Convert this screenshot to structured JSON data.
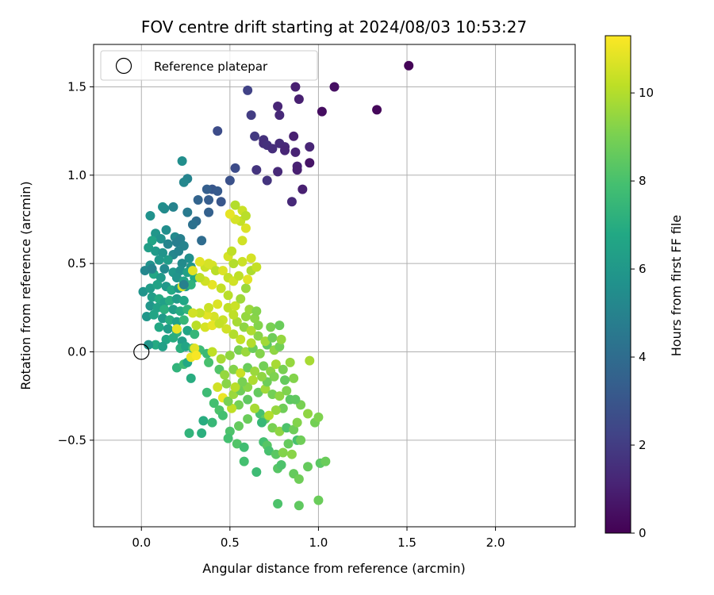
{
  "chart_data": {
    "type": "scatter",
    "title": "FOV centre drift starting at 2024/08/03 10:53:27",
    "xlabel": "Angular distance from reference (arcmin)",
    "ylabel": "Rotation from reference (arcmin)",
    "xlim": [
      -0.27,
      2.45
    ],
    "ylim": [
      -0.99,
      1.74
    ],
    "xticks": [
      "0.0",
      "0.5",
      "1.0",
      "1.5",
      "2.0"
    ],
    "xtick_values": [
      0,
      0.5,
      1.0,
      1.5,
      2.0
    ],
    "yticks": [
      "−0.5",
      "0.0",
      "0.5",
      "1.0",
      "1.5"
    ],
    "ytick_values": [
      -0.5,
      0,
      0.5,
      1.0,
      1.5
    ],
    "grid": true,
    "legend": {
      "position": "top-left",
      "entries": [
        "Reference platepar"
      ]
    },
    "reference_point": {
      "x": 0,
      "y": 0
    },
    "colorbar": {
      "label": "Hours from first FF file",
      "ticks": [
        "0",
        "2",
        "4",
        "6",
        "8",
        "10"
      ],
      "tick_values": [
        0,
        2,
        4,
        6,
        8,
        10
      ],
      "range": [
        0,
        11.3
      ],
      "colormap": "viridis"
    },
    "points": [
      [
        1.51,
        1.62,
        0.1
      ],
      [
        1.33,
        1.37,
        0.2
      ],
      [
        1.09,
        1.5,
        0.5
      ],
      [
        0.87,
        1.5,
        1.0
      ],
      [
        0.89,
        1.43,
        1.0
      ],
      [
        1.02,
        1.36,
        0.4
      ],
      [
        0.77,
        1.39,
        1.2
      ],
      [
        0.78,
        1.34,
        1.3
      ],
      [
        0.6,
        1.48,
        2.2
      ],
      [
        0.62,
        1.34,
        2.0
      ],
      [
        0.43,
        1.25,
        2.6
      ],
      [
        0.64,
        1.22,
        1.9
      ],
      [
        0.86,
        1.22,
        1.0
      ],
      [
        0.69,
        1.2,
        1.6
      ],
      [
        0.69,
        1.18,
        1.5
      ],
      [
        0.71,
        1.17,
        1.6
      ],
      [
        0.78,
        1.18,
        1.4
      ],
      [
        0.81,
        1.16,
        1.3
      ],
      [
        0.74,
        1.15,
        1.5
      ],
      [
        0.81,
        1.14,
        1.2
      ],
      [
        0.87,
        1.13,
        1.1
      ],
      [
        0.95,
        1.16,
        1.2
      ],
      [
        0.95,
        1.07,
        0.6
      ],
      [
        0.88,
        1.05,
        1.1
      ],
      [
        0.88,
        1.03,
        1.0
      ],
      [
        0.77,
        1.02,
        1.3
      ],
      [
        0.65,
        1.03,
        1.7
      ],
      [
        0.53,
        1.04,
        2.6
      ],
      [
        0.71,
        0.97,
        1.7
      ],
      [
        0.91,
        0.92,
        1.0
      ],
      [
        0.85,
        0.85,
        1.3
      ],
      [
        0.5,
        0.97,
        2.8
      ],
      [
        0.4,
        0.92,
        3.0
      ],
      [
        0.43,
        0.91,
        3.2
      ],
      [
        0.37,
        0.92,
        3.4
      ],
      [
        0.38,
        0.86,
        3.3
      ],
      [
        0.32,
        0.86,
        3.6
      ],
      [
        0.45,
        0.85,
        3.0
      ],
      [
        0.23,
        1.08,
        5.5
      ],
      [
        0.26,
        0.98,
        5.0
      ],
      [
        0.24,
        0.96,
        5.2
      ],
      [
        0.12,
        0.82,
        5.6
      ],
      [
        0.13,
        0.81,
        5.4
      ],
      [
        0.18,
        0.82,
        5.0
      ],
      [
        0.26,
        0.79,
        4.6
      ],
      [
        0.05,
        0.77,
        5.7
      ],
      [
        0.38,
        0.79,
        3.5
      ],
      [
        0.31,
        0.74,
        4.0
      ],
      [
        0.29,
        0.72,
        4.2
      ],
      [
        0.08,
        0.67,
        5.9
      ],
      [
        0.14,
        0.69,
        5.5
      ],
      [
        0.34,
        0.63,
        4.0
      ],
      [
        0.19,
        0.65,
        5.3
      ],
      [
        0.22,
        0.64,
        4.9
      ],
      [
        0.11,
        0.64,
        5.7
      ],
      [
        0.06,
        0.63,
        6.6
      ],
      [
        0.15,
        0.61,
        5.1
      ],
      [
        0.2,
        0.62,
        4.8
      ],
      [
        0.24,
        0.6,
        5.0
      ],
      [
        0.04,
        0.59,
        6.3
      ],
      [
        0.08,
        0.57,
        6.1
      ],
      [
        0.12,
        0.56,
        5.8
      ],
      [
        0.18,
        0.55,
        5.2
      ],
      [
        0.21,
        0.57,
        5.0
      ],
      [
        0.27,
        0.53,
        5.6
      ],
      [
        0.1,
        0.52,
        6.0
      ],
      [
        0.15,
        0.52,
        6.2
      ],
      [
        0.23,
        0.5,
        5.4
      ],
      [
        0.28,
        0.48,
        5.9
      ],
      [
        0.05,
        0.49,
        5.7
      ],
      [
        0.02,
        0.46,
        5.2
      ],
      [
        0.13,
        0.47,
        5.3
      ],
      [
        0.18,
        0.45,
        6.0
      ],
      [
        0.22,
        0.46,
        5.6
      ],
      [
        0.26,
        0.45,
        6.4
      ],
      [
        0.07,
        0.44,
        6.7
      ],
      [
        0.11,
        0.42,
        6.1
      ],
      [
        0.2,
        0.42,
        5.8
      ],
      [
        0.24,
        0.4,
        6.5
      ],
      [
        0.3,
        0.42,
        6.8
      ],
      [
        0.01,
        0.34,
        5.8
      ],
      [
        0.05,
        0.36,
        6.2
      ],
      [
        0.09,
        0.38,
        6.5
      ],
      [
        0.14,
        0.37,
        6.0
      ],
      [
        0.17,
        0.35,
        6.8
      ],
      [
        0.21,
        0.36,
        5.9
      ],
      [
        0.25,
        0.37,
        6.1
      ],
      [
        0.28,
        0.38,
        7.2
      ],
      [
        0.06,
        0.31,
        6.3
      ],
      [
        0.1,
        0.3,
        6.9
      ],
      [
        0.13,
        0.28,
        6.4
      ],
      [
        0.16,
        0.29,
        7.0
      ],
      [
        0.2,
        0.3,
        6.2
      ],
      [
        0.24,
        0.29,
        6.7
      ],
      [
        0.05,
        0.26,
        5.9
      ],
      [
        0.09,
        0.25,
        6.5
      ],
      [
        0.13,
        0.24,
        7.1
      ],
      [
        0.18,
        0.24,
        6.3
      ],
      [
        0.22,
        0.23,
        6.9
      ],
      [
        0.26,
        0.24,
        7.3
      ],
      [
        0.03,
        0.2,
        5.9
      ],
      [
        0.07,
        0.21,
        6.6
      ],
      [
        0.12,
        0.19,
        6.1
      ],
      [
        0.16,
        0.18,
        7.0
      ],
      [
        0.2,
        0.17,
        6.4
      ],
      [
        0.24,
        0.18,
        7.5
      ],
      [
        0.1,
        0.14,
        6.8
      ],
      [
        0.15,
        0.13,
        6.2
      ],
      [
        0.2,
        0.11,
        7.2
      ],
      [
        0.26,
        0.12,
        6.6
      ],
      [
        0.3,
        0.1,
        7.4
      ],
      [
        0.14,
        0.07,
        6.7
      ],
      [
        0.18,
        0.08,
        7.0
      ],
      [
        0.23,
        0.06,
        6.3
      ],
      [
        0.08,
        0.04,
        6.9
      ],
      [
        0.12,
        0.03,
        6.4
      ],
      [
        0.04,
        0.04,
        5.9
      ],
      [
        0.2,
        0.13,
        10.9
      ],
      [
        0.22,
        0.02,
        7.1
      ],
      [
        0.25,
        0.03,
        6.6
      ],
      [
        0.29,
        0.02,
        7.5
      ],
      [
        0.33,
        0.01,
        7.7
      ],
      [
        0.06,
        0.47,
        5.0
      ],
      [
        0.23,
        0.37,
        10.6
      ],
      [
        0.24,
        0.38,
        4.9
      ],
      [
        0.2,
        -0.09,
        7.3
      ],
      [
        0.24,
        -0.07,
        7.7
      ],
      [
        0.26,
        -0.06,
        6.8
      ],
      [
        0.28,
        -0.15,
        7.0
      ],
      [
        0.3,
        0.02,
        10.8
      ],
      [
        0.28,
        -0.03,
        11.0
      ],
      [
        0.31,
        -0.02,
        11.2
      ],
      [
        0.37,
        -0.01,
        7.6
      ],
      [
        0.4,
        0.0,
        10.2
      ],
      [
        0.38,
        -0.06,
        8.0
      ],
      [
        0.44,
        -0.1,
        8.2
      ],
      [
        0.43,
        -0.2,
        10.5
      ],
      [
        0.46,
        -0.26,
        11.0
      ],
      [
        0.37,
        -0.23,
        7.7
      ],
      [
        0.41,
        -0.29,
        7.9
      ],
      [
        0.44,
        -0.33,
        8.1
      ],
      [
        0.35,
        -0.39,
        7.0
      ],
      [
        0.4,
        -0.4,
        7.5
      ],
      [
        0.46,
        -0.36,
        7.9
      ],
      [
        0.27,
        -0.46,
        7.3
      ],
      [
        0.34,
        -0.46,
        7.1
      ],
      [
        0.5,
        -0.45,
        8.1
      ],
      [
        0.49,
        -0.49,
        7.9
      ],
      [
        0.55,
        -0.42,
        8.6
      ],
      [
        0.54,
        -0.52,
        8.2
      ],
      [
        0.58,
        -0.54,
        7.8
      ],
      [
        0.58,
        -0.62,
        7.9
      ],
      [
        0.65,
        -0.68,
        7.7
      ],
      [
        0.77,
        -0.86,
        8.1
      ],
      [
        0.89,
        -0.87,
        8.5
      ],
      [
        1.0,
        -0.84,
        8.7
      ],
      [
        0.86,
        -0.69,
        8.6
      ],
      [
        0.89,
        -0.72,
        8.8
      ],
      [
        0.77,
        -0.66,
        8.3
      ],
      [
        0.79,
        -0.64,
        8.1
      ],
      [
        0.85,
        -0.58,
        9.3
      ],
      [
        0.94,
        -0.65,
        8.6
      ],
      [
        1.01,
        -0.63,
        8.4
      ],
      [
        1.04,
        -0.62,
        8.7
      ],
      [
        0.69,
        -0.51,
        7.9
      ],
      [
        0.71,
        -0.53,
        8.3
      ],
      [
        0.72,
        -0.56,
        8.0
      ],
      [
        0.76,
        -0.58,
        8.4
      ],
      [
        0.8,
        -0.57,
        9.2
      ],
      [
        0.83,
        -0.52,
        8.6
      ],
      [
        0.88,
        -0.5,
        8.0
      ],
      [
        0.9,
        -0.5,
        8.8
      ],
      [
        0.98,
        -0.4,
        8.9
      ],
      [
        1.0,
        -0.37,
        9.1
      ],
      [
        0.94,
        -0.35,
        9.4
      ],
      [
        0.6,
        -0.38,
        8.7
      ],
      [
        0.67,
        -0.35,
        8.0
      ],
      [
        0.7,
        -0.38,
        8.5
      ],
      [
        0.74,
        -0.43,
        9.0
      ],
      [
        0.78,
        -0.45,
        9.4
      ],
      [
        0.82,
        -0.43,
        8.1
      ],
      [
        0.86,
        -0.44,
        8.8
      ],
      [
        0.88,
        -0.4,
        9.2
      ],
      [
        0.9,
        -0.3,
        9.0
      ],
      [
        0.84,
        -0.27,
        8.4
      ],
      [
        0.8,
        -0.32,
        8.8
      ],
      [
        0.76,
        -0.33,
        9.5
      ],
      [
        0.72,
        -0.36,
        10.0
      ],
      [
        0.68,
        -0.4,
        7.5
      ],
      [
        0.64,
        -0.32,
        9.8
      ],
      [
        0.6,
        -0.27,
        8.5
      ],
      [
        0.55,
        -0.3,
        8.9
      ],
      [
        0.51,
        -0.32,
        10.2
      ],
      [
        0.49,
        -0.28,
        9.0
      ],
      [
        0.52,
        -0.24,
        9.6
      ],
      [
        0.56,
        -0.22,
        8.8
      ],
      [
        0.6,
        -0.2,
        9.3
      ],
      [
        0.66,
        -0.23,
        8.6
      ],
      [
        0.7,
        -0.21,
        9.7
      ],
      [
        0.74,
        -0.24,
        8.9
      ],
      [
        0.78,
        -0.25,
        9.4
      ],
      [
        0.82,
        -0.22,
        9.1
      ],
      [
        0.87,
        -0.27,
        8.5
      ],
      [
        0.47,
        -0.13,
        9.5
      ],
      [
        0.52,
        -0.1,
        9.2
      ],
      [
        0.56,
        -0.12,
        10.4
      ],
      [
        0.6,
        -0.09,
        8.7
      ],
      [
        0.64,
        -0.11,
        9.6
      ],
      [
        0.69,
        -0.08,
        8.9
      ],
      [
        0.73,
        -0.11,
        9.3
      ],
      [
        0.76,
        -0.07,
        9.8
      ],
      [
        0.8,
        -0.1,
        9.0
      ],
      [
        0.84,
        -0.06,
        9.5
      ],
      [
        0.95,
        -0.05,
        9.8
      ],
      [
        0.86,
        -0.15,
        9.2
      ],
      [
        0.81,
        -0.16,
        8.6
      ],
      [
        0.75,
        -0.14,
        9.1
      ],
      [
        0.71,
        -0.17,
        8.8
      ],
      [
        0.68,
        -0.14,
        9.4
      ],
      [
        0.63,
        -0.16,
        9.9
      ],
      [
        0.57,
        -0.17,
        9.0
      ],
      [
        0.53,
        -0.2,
        10.1
      ],
      [
        0.48,
        -0.18,
        9.3
      ],
      [
        0.45,
        -0.04,
        9.8
      ],
      [
        0.5,
        -0.02,
        9.4
      ],
      [
        0.55,
        0.01,
        9.0
      ],
      [
        0.59,
        0.0,
        9.6
      ],
      [
        0.63,
        0.02,
        8.7
      ],
      [
        0.67,
        -0.01,
        9.2
      ],
      [
        0.71,
        0.04,
        8.5
      ],
      [
        0.75,
        0.01,
        9.4
      ],
      [
        0.78,
        0.03,
        8.9
      ],
      [
        0.62,
        0.05,
        10.0
      ],
      [
        0.66,
        0.09,
        9.3
      ],
      [
        0.7,
        0.06,
        9.7
      ],
      [
        0.74,
        0.08,
        8.8
      ],
      [
        0.79,
        0.07,
        9.5
      ],
      [
        0.56,
        0.07,
        10.3
      ],
      [
        0.52,
        0.1,
        10.0
      ],
      [
        0.48,
        0.13,
        10.5
      ],
      [
        0.54,
        0.17,
        9.8
      ],
      [
        0.58,
        0.14,
        9.4
      ],
      [
        0.62,
        0.12,
        9.9
      ],
      [
        0.66,
        0.15,
        9.2
      ],
      [
        0.73,
        0.14,
        9.0
      ],
      [
        0.78,
        0.15,
        8.7
      ],
      [
        0.59,
        0.2,
        9.5
      ],
      [
        0.64,
        0.19,
        9.3
      ],
      [
        0.61,
        0.24,
        9.6
      ],
      [
        0.65,
        0.23,
        9.2
      ],
      [
        0.52,
        0.21,
        10.2
      ],
      [
        0.46,
        0.18,
        10.4
      ],
      [
        0.41,
        0.2,
        10.6
      ],
      [
        0.37,
        0.21,
        10.8
      ],
      [
        0.33,
        0.22,
        10.3
      ],
      [
        0.29,
        0.22,
        10.5
      ],
      [
        0.31,
        0.15,
        10.1
      ],
      [
        0.36,
        0.14,
        10.6
      ],
      [
        0.4,
        0.15,
        10.9
      ],
      [
        0.44,
        0.16,
        10.3
      ],
      [
        0.38,
        0.25,
        10.4
      ],
      [
        0.43,
        0.27,
        10.7
      ],
      [
        0.49,
        0.25,
        10.2
      ],
      [
        0.53,
        0.26,
        10.4
      ],
      [
        0.56,
        0.3,
        9.7
      ],
      [
        0.59,
        0.36,
        9.6
      ],
      [
        0.49,
        0.32,
        10.1
      ],
      [
        0.45,
        0.36,
        10.3
      ],
      [
        0.4,
        0.38,
        10.9
      ],
      [
        0.36,
        0.4,
        10.5
      ],
      [
        0.33,
        0.42,
        10.2
      ],
      [
        0.29,
        0.46,
        10.8
      ],
      [
        0.36,
        0.48,
        10.4
      ],
      [
        0.4,
        0.49,
        10.6
      ],
      [
        0.42,
        0.46,
        10.1
      ],
      [
        0.46,
        0.46,
        10.7
      ],
      [
        0.49,
        0.42,
        10.3
      ],
      [
        0.52,
        0.4,
        10.5
      ],
      [
        0.55,
        0.43,
        10.2
      ],
      [
        0.6,
        0.41,
        10.8
      ],
      [
        0.62,
        0.46,
        9.9
      ],
      [
        0.65,
        0.48,
        10.3
      ],
      [
        0.62,
        0.53,
        10.6
      ],
      [
        0.57,
        0.51,
        10.4
      ],
      [
        0.52,
        0.5,
        10.0
      ],
      [
        0.49,
        0.54,
        10.6
      ],
      [
        0.51,
        0.57,
        10.2
      ],
      [
        0.57,
        0.63,
        10.5
      ],
      [
        0.59,
        0.7,
        10.7
      ],
      [
        0.56,
        0.74,
        10.3
      ],
      [
        0.53,
        0.75,
        10.6
      ],
      [
        0.5,
        0.78,
        10.9
      ],
      [
        0.57,
        0.8,
        10.4
      ],
      [
        0.59,
        0.77,
        10.1
      ],
      [
        0.53,
        0.83,
        10.0
      ],
      [
        0.38,
        0.5,
        10.6
      ],
      [
        0.33,
        0.51,
        10.8
      ]
    ]
  }
}
